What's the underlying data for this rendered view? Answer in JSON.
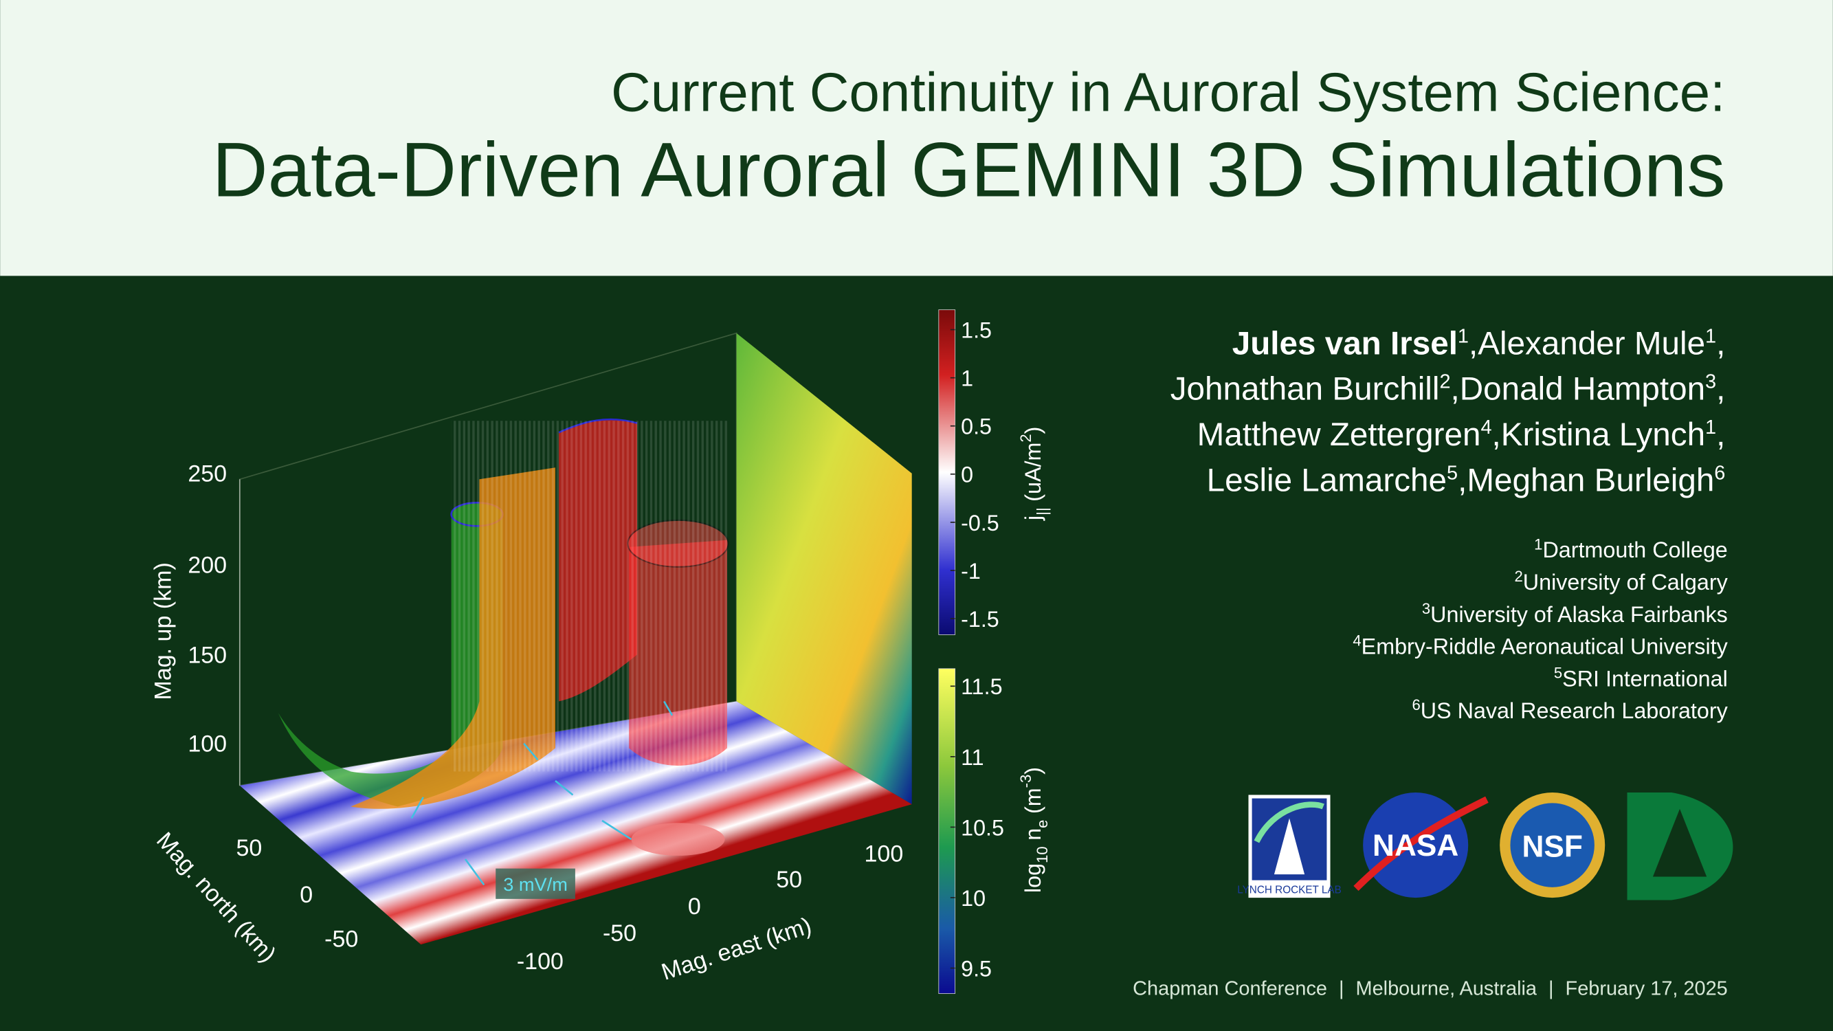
{
  "header": {
    "title_line1": "Current Continuity in Auroral System Science:",
    "title_line2": "Data-Driven Auroral GEMINI 3D Simulations"
  },
  "figure": {
    "up_axis": {
      "label": "Mag. up (km)",
      "ticks": [
        "250",
        "200",
        "150",
        "100"
      ]
    },
    "north_axis": {
      "label": "Mag. north (km)",
      "ticks": [
        "50",
        "0",
        "-50"
      ]
    },
    "east_axis": {
      "label": "Mag. east (km)",
      "ticks": [
        "-100",
        "-50",
        "0",
        "50",
        "100"
      ]
    },
    "arrow_label": "3 mV/m",
    "current_colorbar": {
      "ticks": [
        "1.5",
        "1",
        "0.5",
        "0",
        "-0.5",
        "-1",
        "-1.5"
      ],
      "label": {
        "symbol": "j",
        "subscript": "||",
        "units": "(uA/m",
        "superscript": "2",
        "close": ")"
      }
    },
    "density_colorbar": {
      "ticks": [
        "11.5",
        "11",
        "10.5",
        "10",
        "9.5"
      ],
      "label": {
        "log": "log",
        "base": "10",
        "symbol": "n",
        "subscript": "e",
        "units": "(m",
        "superscript": "-3",
        "close": ")"
      }
    }
  },
  "authors": {
    "separator": ",",
    "lines": [
      [
        {
          "name": "Jules van Irsel",
          "affiliation": "1"
        },
        {
          "name": "Alexander Mule",
          "affiliation": "1"
        }
      ],
      [
        {
          "name": "Johnathan Burchill",
          "affiliation": "2"
        },
        {
          "name": "Donald Hampton",
          "affiliation": "3"
        }
      ],
      [
        {
          "name": "Matthew Zettergren",
          "affiliation": "4"
        },
        {
          "name": "Kristina Lynch",
          "affiliation": "1"
        }
      ],
      [
        {
          "name": "Leslie Lamarche",
          "affiliation": "5"
        },
        {
          "name": "Meghan Burleigh",
          "affiliation": "6"
        }
      ]
    ]
  },
  "affiliations": [
    {
      "number": "1",
      "name": "Dartmouth College"
    },
    {
      "number": "2",
      "name": "University of Calgary"
    },
    {
      "number": "3",
      "name": "University of Alaska Fairbanks"
    },
    {
      "number": "4",
      "name": "Embry-Riddle Aeronautical University"
    },
    {
      "number": "5",
      "name": "SRI International"
    },
    {
      "number": "6",
      "name": "US Naval Research Laboratory"
    }
  ],
  "logos": {
    "lynch": "LYNCH ROCKET LAB",
    "nasa": "NASA",
    "nsf": "NSF"
  },
  "footer": {
    "separator": "|",
    "items": [
      "Chapman Conference",
      "Melbourne, Australia",
      "February 17, 2025"
    ]
  }
}
